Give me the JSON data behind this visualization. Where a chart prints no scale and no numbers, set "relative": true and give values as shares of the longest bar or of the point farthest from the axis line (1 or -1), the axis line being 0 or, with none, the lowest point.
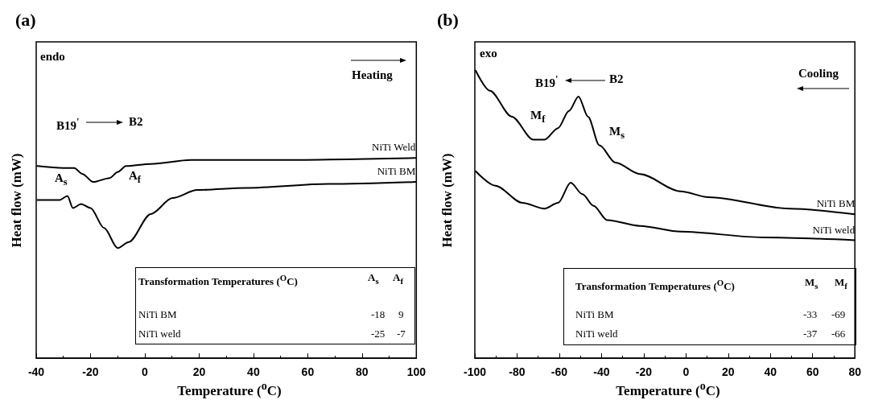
{
  "chart_data": [
    {
      "type": "line",
      "relative": true,
      "title": "(a)",
      "xlabel": "Temperature ($^{o}$C)",
      "ylabel": "Heat flow (mW)",
      "xlim": [
        -40,
        100
      ],
      "xticks": [
        -40,
        -20,
        0,
        20,
        40,
        60,
        80,
        100
      ],
      "marker": "none",
      "line_style": "solid",
      "annotations": [
        "endo",
        "Heating",
        "B19$^{'}$",
        "B2",
        "A$_{s}$",
        "A$_{f}$",
        "Transformation Temperatures ($^{O}$C)",
        "A$_{s}$",
        "A$_{f}$",
        "NiTi BM",
        "-18",
        "9",
        "NiTi weld",
        "-25",
        "-7"
      ],
      "series": [
        {
          "name": "NiTi Weld",
          "color": "#000000",
          "x": [
            -39.6,
            -30,
            -26,
            -23,
            -19,
            -12.9,
            -10,
            -6.9,
            2.2,
            17,
            47.4,
            99.7
          ],
          "values": [
            0.96,
            0.95,
            0.95,
            0.92,
            0.88,
            0.9,
            0.93,
            0.96,
            0.97,
            0.99,
            0.99,
            1.0
          ]
        },
        {
          "name": "NiTi BM",
          "color": "#000000",
          "x": [
            -39.6,
            -31.4,
            -28.5,
            -26.5,
            -23.5,
            -20,
            -15,
            -10,
            -5.9,
            2.2,
            10.2,
            19.3,
            37.3,
            67.6,
            99.7
          ],
          "values": [
            0.79,
            0.79,
            0.81,
            0.75,
            0.77,
            0.75,
            0.65,
            0.55,
            0.58,
            0.72,
            0.8,
            0.84,
            0.85,
            0.87,
            0.88
          ]
        }
      ]
    },
    {
      "type": "line",
      "relative": true,
      "title": "(b)",
      "xlabel": "Temperature ($^{o}$C)",
      "ylabel": "Heat flow (mW)",
      "xlim": [
        -100,
        80
      ],
      "xticks": [
        -100,
        -80,
        -60,
        -40,
        -20,
        0,
        20,
        40,
        60,
        80
      ],
      "marker": "none",
      "line_style": "solid",
      "annotations": [
        "exo",
        "Cooling",
        "B19$^{'}$",
        "B2",
        "M$_{f}$",
        "M$_{s}$",
        "Transformation Temperatures ($^{O}$C)",
        "M$_{s}$",
        "M$_{f}$",
        "NiTi BM",
        "-33",
        "-69",
        "NiTi weld",
        "-37",
        "-66"
      ],
      "series": [
        {
          "name": "NiTi BM",
          "color": "#000000",
          "x": [
            -99.6,
            -92.9,
            -82.5,
            -72.3,
            -67,
            -60.6,
            -55.4,
            -50.9,
            -46.4,
            -41,
            -33.4,
            -21.8,
            -2.5,
            10.6,
            49.3,
            80
          ],
          "values": [
            1.0,
            0.93,
            0.84,
            0.76,
            0.76,
            0.8,
            0.86,
            0.91,
            0.84,
            0.74,
            0.68,
            0.64,
            0.58,
            0.56,
            0.52,
            0.5
          ]
        },
        {
          "name": "NiTi weld",
          "color": "#000000",
          "x": [
            -99.6,
            -90.3,
            -77.5,
            -67,
            -60.6,
            -54.6,
            -49,
            -43.8,
            -37.3,
            -21.8,
            -2.5,
            36.5,
            80
          ],
          "values": [
            0.65,
            0.6,
            0.54,
            0.52,
            0.54,
            0.61,
            0.57,
            0.53,
            0.48,
            0.46,
            0.44,
            0.42,
            0.41
          ]
        }
      ]
    }
  ]
}
